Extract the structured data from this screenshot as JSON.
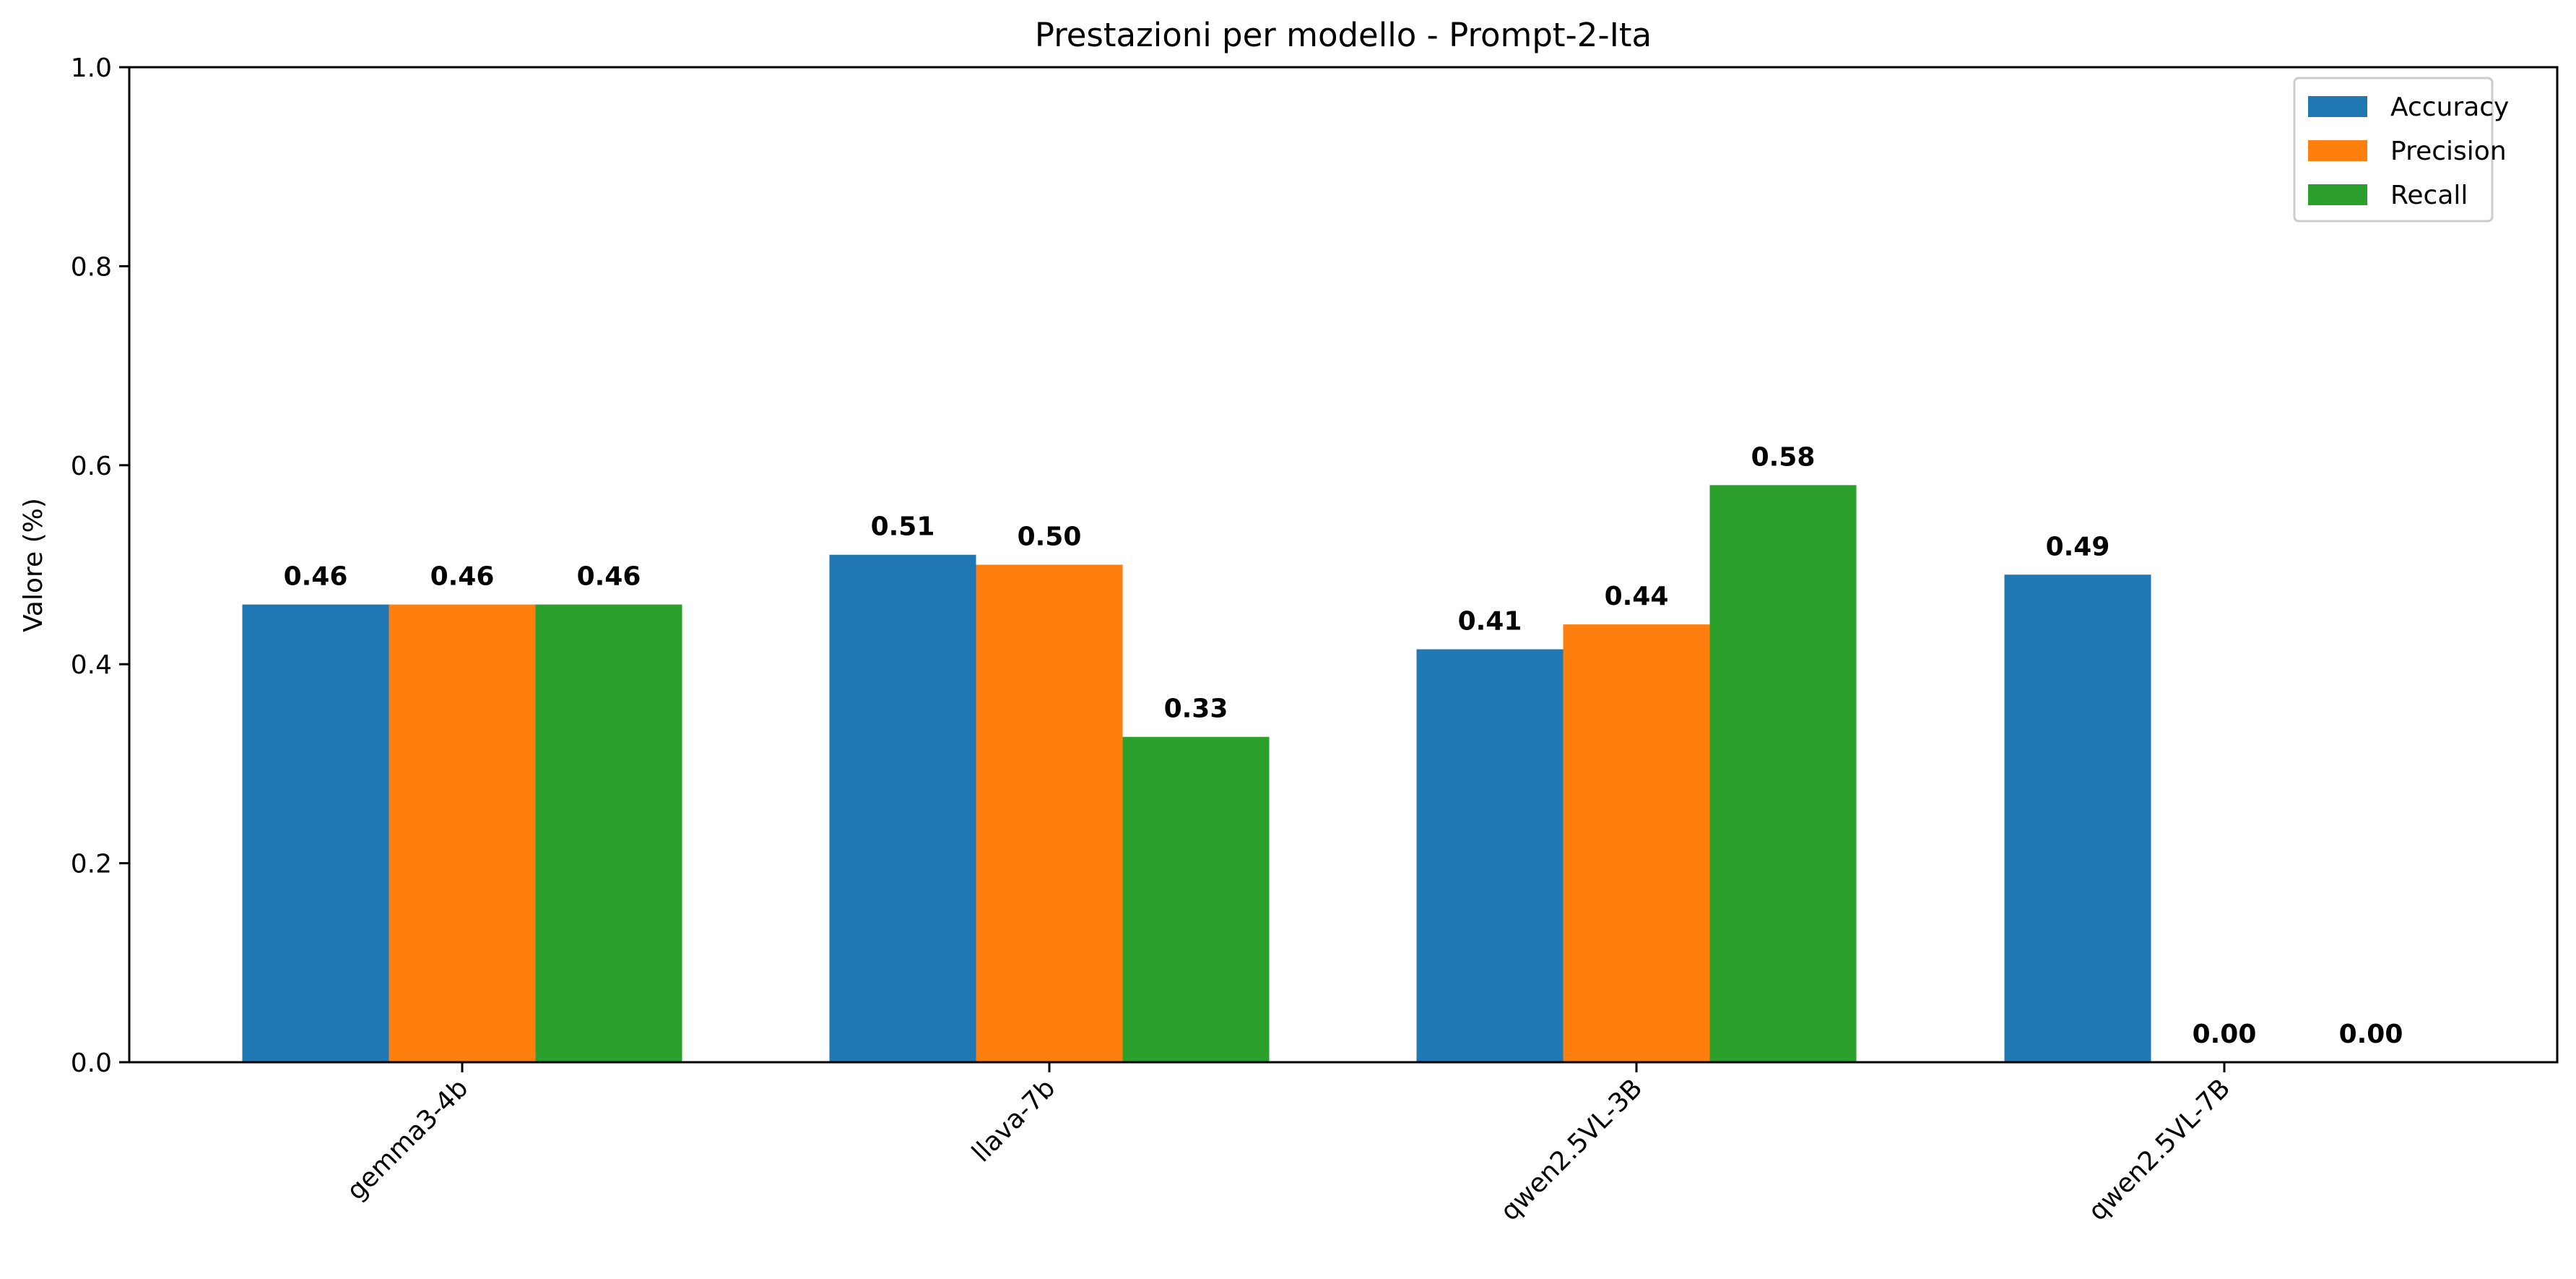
{
  "chart_data": {
    "type": "bar",
    "title": "Prestazioni per modello - Prompt-2-Ita",
    "xlabel": "",
    "ylabel": "Valore (%)",
    "ylim": [
      0,
      1.0
    ],
    "yticks": [
      0.0,
      0.2,
      0.4,
      0.6,
      0.8,
      1.0
    ],
    "ytick_labels": [
      "0.0",
      "0.2",
      "0.4",
      "0.6",
      "0.8",
      "1.0"
    ],
    "categories": [
      "gemma3-4b",
      "llava-7b",
      "qwen2.5VL-3B",
      "qwen2.5VL-7B"
    ],
    "legend_position": "top-right",
    "series": [
      {
        "name": "Accuracy",
        "color": "#1f77b4",
        "values": [
          0.46,
          0.51,
          0.415,
          0.49
        ],
        "labels": [
          "0.46",
          "0.51",
          "0.41",
          "0.49"
        ]
      },
      {
        "name": "Precision",
        "color": "#ff7f0e",
        "values": [
          0.46,
          0.5,
          0.44,
          0.0
        ],
        "labels": [
          "0.46",
          "0.50",
          "0.44",
          "0.00"
        ]
      },
      {
        "name": "Recall",
        "color": "#2ca02c",
        "values": [
          0.46,
          0.327,
          0.58,
          0.0
        ],
        "labels": [
          "0.46",
          "0.33",
          "0.58",
          "0.00"
        ]
      }
    ]
  }
}
